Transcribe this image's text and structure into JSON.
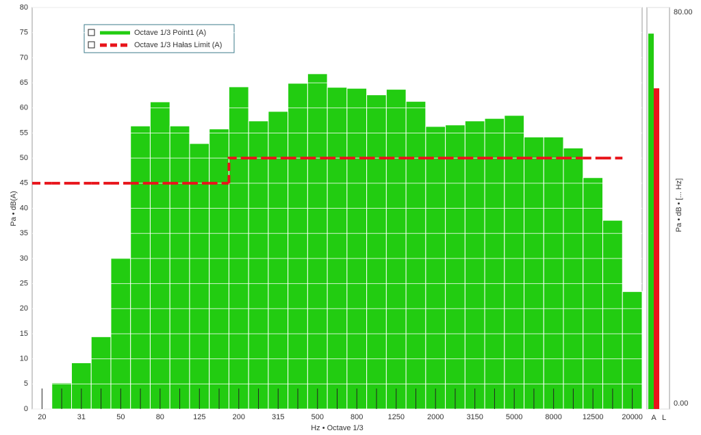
{
  "chart_data": [
    {
      "type": "bar",
      "xlabel": "Hz • Octave 1/3",
      "ylabel": "Pa • dB(A)",
      "categories": [
        "20",
        null,
        "31",
        null,
        "50",
        null,
        "80",
        null,
        "125",
        null,
        "200",
        null,
        "315",
        null,
        "500",
        null,
        "800",
        null,
        "1250",
        null,
        "2000",
        null,
        "3150",
        null,
        "5000",
        null,
        "8000",
        null,
        "12500",
        null,
        "20000"
      ],
      "series": [
        {
          "name": "Octave 1/3 Point1 (A)",
          "color": "#22cc11",
          "values": [
            null,
            5.2,
            9.2,
            14.4,
            30.1,
            56.4,
            61.2,
            56.4,
            52.9,
            55.8,
            64.2,
            57.4,
            59.3,
            64.9,
            66.8,
            64.1,
            63.9,
            62.6,
            63.7,
            61.3,
            56.3,
            56.6,
            57.4,
            57.9,
            58.5,
            54.2,
            54.2,
            52.0,
            46.1,
            37.6,
            23.4
          ]
        },
        {
          "name": "Octave 1/3 Hałas Limit (A)",
          "color": "#e8141b",
          "type": "step",
          "values": [
            45,
            45,
            45,
            45,
            45,
            45,
            45,
            45,
            45,
            45,
            50,
            50,
            50,
            50,
            50,
            50,
            50,
            50,
            50,
            50,
            50,
            50,
            50,
            50,
            50,
            50,
            50,
            50,
            50,
            50,
            null
          ]
        }
      ],
      "ylim": [
        0,
        80
      ],
      "yticks": [
        0,
        5,
        10,
        15,
        20,
        25,
        30,
        35,
        40,
        45,
        50,
        55,
        60,
        65,
        70,
        75,
        80
      ],
      "grid": true
    },
    {
      "type": "bar",
      "ylabel": "Pa • dB • [... Hz]",
      "categories": [
        "A",
        "L"
      ],
      "values": [
        74.8,
        63.9
      ],
      "colors": [
        "#22cc11",
        "#e8141b"
      ],
      "ylim": [
        0,
        80
      ],
      "yticks": [
        {
          "value": 0,
          "label": "0.00"
        },
        {
          "value": 80,
          "label": "80.00"
        }
      ],
      "grid": true
    }
  ]
}
